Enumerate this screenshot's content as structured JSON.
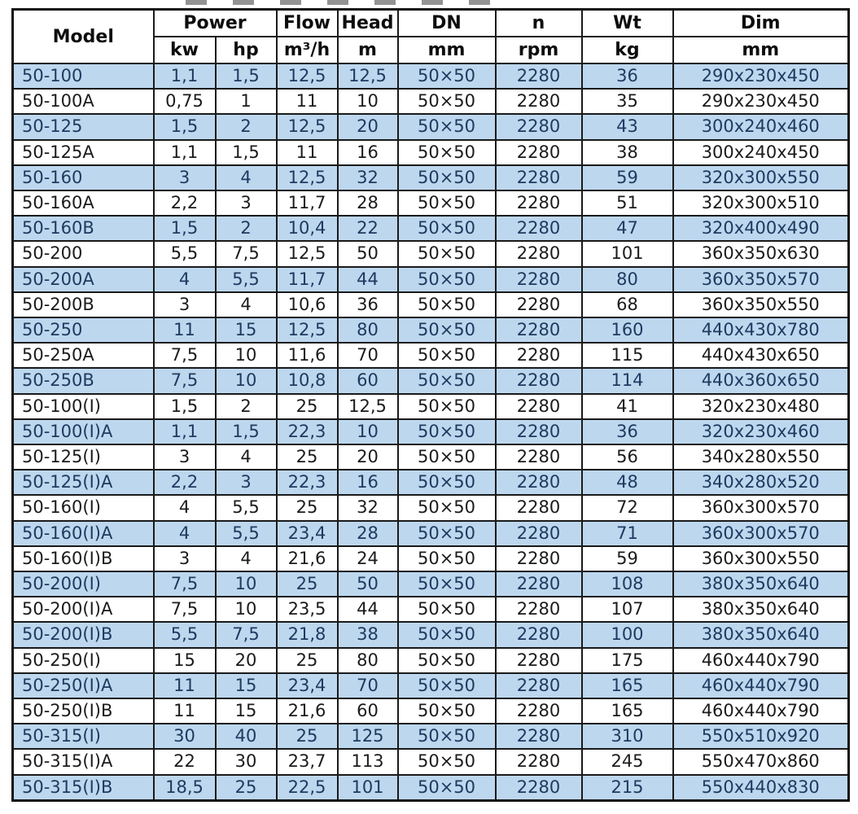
{
  "table": {
    "header": {
      "model": "Model",
      "power": "Power",
      "kw": "kw",
      "hp": "hp",
      "flow": "Flow",
      "flow_unit": "m³/h",
      "head": "Head",
      "head_unit": "m",
      "dn": "DN",
      "dn_unit": "mm",
      "n": "n",
      "n_unit": "rpm",
      "wt": "Wt",
      "wt_unit": "kg",
      "dim": "Dim",
      "dim_unit": "mm"
    },
    "column_keys": [
      "model",
      "power-kw",
      "power-hp",
      "flow-m3h",
      "head-m",
      "dn-mm",
      "n-rpm",
      "wt-kg",
      "dim-mm"
    ],
    "rows": [
      [
        "50-100",
        "1,1",
        "1,5",
        "12,5",
        "12,5",
        "50×50",
        "2280",
        "36",
        "290x230x450"
      ],
      [
        "50-100A",
        "0,75",
        "1",
        "11",
        "10",
        "50×50",
        "2280",
        "35",
        "290x230x450"
      ],
      [
        "50-125",
        "1,5",
        "2",
        "12,5",
        "20",
        "50×50",
        "2280",
        "43",
        "300x240x460"
      ],
      [
        "50-125A",
        "1,1",
        "1,5",
        "11",
        "16",
        "50×50",
        "2280",
        "38",
        "300x240x450"
      ],
      [
        "50-160",
        "3",
        "4",
        "12,5",
        "32",
        "50×50",
        "2280",
        "59",
        "320x300x550"
      ],
      [
        "50-160A",
        "2,2",
        "3",
        "11,7",
        "28",
        "50×50",
        "2280",
        "51",
        "320x300x510"
      ],
      [
        "50-160B",
        "1,5",
        "2",
        "10,4",
        "22",
        "50×50",
        "2280",
        "47",
        "320x400x490"
      ],
      [
        "50-200",
        "5,5",
        "7,5",
        "12,5",
        "50",
        "50×50",
        "2280",
        "101",
        "360x350x630"
      ],
      [
        "50-200A",
        "4",
        "5,5",
        "11,7",
        "44",
        "50×50",
        "2280",
        "80",
        "360x350x570"
      ],
      [
        "50-200B",
        "3",
        "4",
        "10,6",
        "36",
        "50×50",
        "2280",
        "68",
        "360x350x550"
      ],
      [
        "50-250",
        "11",
        "15",
        "12,5",
        "80",
        "50×50",
        "2280",
        "160",
        "440x430x780"
      ],
      [
        "50-250A",
        "7,5",
        "10",
        "11,6",
        "70",
        "50×50",
        "2280",
        "115",
        "440x430x650"
      ],
      [
        "50-250B",
        "7,5",
        "10",
        "10,8",
        "60",
        "50×50",
        "2280",
        "114",
        "440x360x650"
      ],
      [
        "50-100(I)",
        "1,5",
        "2",
        "25",
        "12,5",
        "50×50",
        "2280",
        "41",
        "320x230x480"
      ],
      [
        "50-100(I)A",
        "1,1",
        "1,5",
        "22,3",
        "10",
        "50×50",
        "2280",
        "36",
        "320x230x460"
      ],
      [
        "50-125(I)",
        "3",
        "4",
        "25",
        "20",
        "50×50",
        "2280",
        "56",
        "340x280x550"
      ],
      [
        "50-125(I)A",
        "2,2",
        "3",
        "22,3",
        "16",
        "50×50",
        "2280",
        "48",
        "340x280x520"
      ],
      [
        "50-160(I)",
        "4",
        "5,5",
        "25",
        "32",
        "50×50",
        "2280",
        "72",
        "360x300x570"
      ],
      [
        "50-160(I)A",
        "4",
        "5,5",
        "23,4",
        "28",
        "50×50",
        "2280",
        "71",
        "360x300x570"
      ],
      [
        "50-160(I)B",
        "3",
        "4",
        "21,6",
        "24",
        "50×50",
        "2280",
        "59",
        "360x300x550"
      ],
      [
        "50-200(I)",
        "7,5",
        "10",
        "25",
        "50",
        "50×50",
        "2280",
        "108",
        "380x350x640"
      ],
      [
        "50-200(I)A",
        "7,5",
        "10",
        "23,5",
        "44",
        "50×50",
        "2280",
        "107",
        "380x350x640"
      ],
      [
        "50-200(I)B",
        "5,5",
        "7,5",
        "21,8",
        "38",
        "50×50",
        "2280",
        "100",
        "380x350x640"
      ],
      [
        "50-250(I)",
        "15",
        "20",
        "25",
        "80",
        "50×50",
        "2280",
        "175",
        "460x440x790"
      ],
      [
        "50-250(I)A",
        "11",
        "15",
        "23,4",
        "70",
        "50×50",
        "2280",
        "165",
        "460x440x790"
      ],
      [
        "50-250(I)B",
        "11",
        "15",
        "21,6",
        "60",
        "50×50",
        "2280",
        "165",
        "460x440x790"
      ],
      [
        "50-315(I)",
        "30",
        "40",
        "25",
        "125",
        "50×50",
        "2280",
        "310",
        "550x510x920"
      ],
      [
        "50-315(I)A",
        "22",
        "30",
        "23,7",
        "113",
        "50×50",
        "2280",
        "245",
        "550x470x860"
      ],
      [
        "50-315(I)B",
        "18,5",
        "25",
        "22,5",
        "101",
        "50×50",
        "2280",
        "215",
        "550x440x830"
      ]
    ]
  },
  "colors": {
    "stripe_blue": "#bdd7ee",
    "stripe_text": "#1f3a60",
    "plain_text": "#1b1b1b",
    "grid": "#1a1a1a"
  }
}
